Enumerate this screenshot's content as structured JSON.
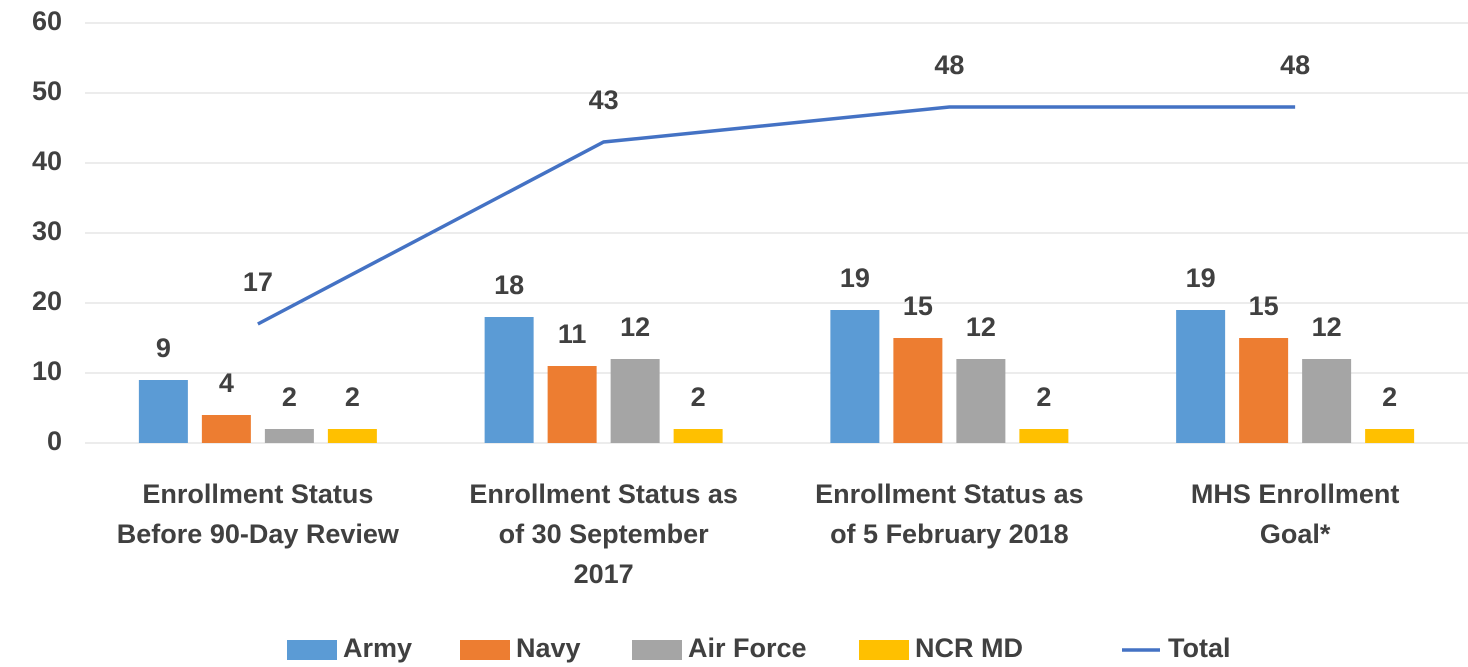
{
  "chart_data": {
    "type": "bar",
    "categories": [
      "Enrollment Status\nBefore 90-Day Review",
      "Enrollment Status as\nof  30 September\n2017",
      "Enrollment Status as\nof 5 February 2018",
      "MHS Enrollment\nGoal*"
    ],
    "series": [
      {
        "name": "Army",
        "color": "#5b9bd5",
        "values": [
          9,
          18,
          19,
          19
        ]
      },
      {
        "name": "Navy",
        "color": "#ed7d31",
        "values": [
          4,
          11,
          15,
          15
        ]
      },
      {
        "name": "Air Force",
        "color": "#a5a5a5",
        "values": [
          2,
          12,
          12,
          12
        ]
      },
      {
        "name": "NCR MD",
        "color": "#ffc000",
        "values": [
          2,
          2,
          2,
          2
        ]
      },
      {
        "name": "Total",
        "type": "line",
        "color": "#4472c4",
        "values": [
          17,
          43,
          48,
          48
        ]
      }
    ],
    "ylim": [
      0,
      60
    ],
    "yticks": [
      0,
      10,
      20,
      30,
      40,
      50,
      60
    ],
    "grid": true,
    "legend": "bottom"
  }
}
